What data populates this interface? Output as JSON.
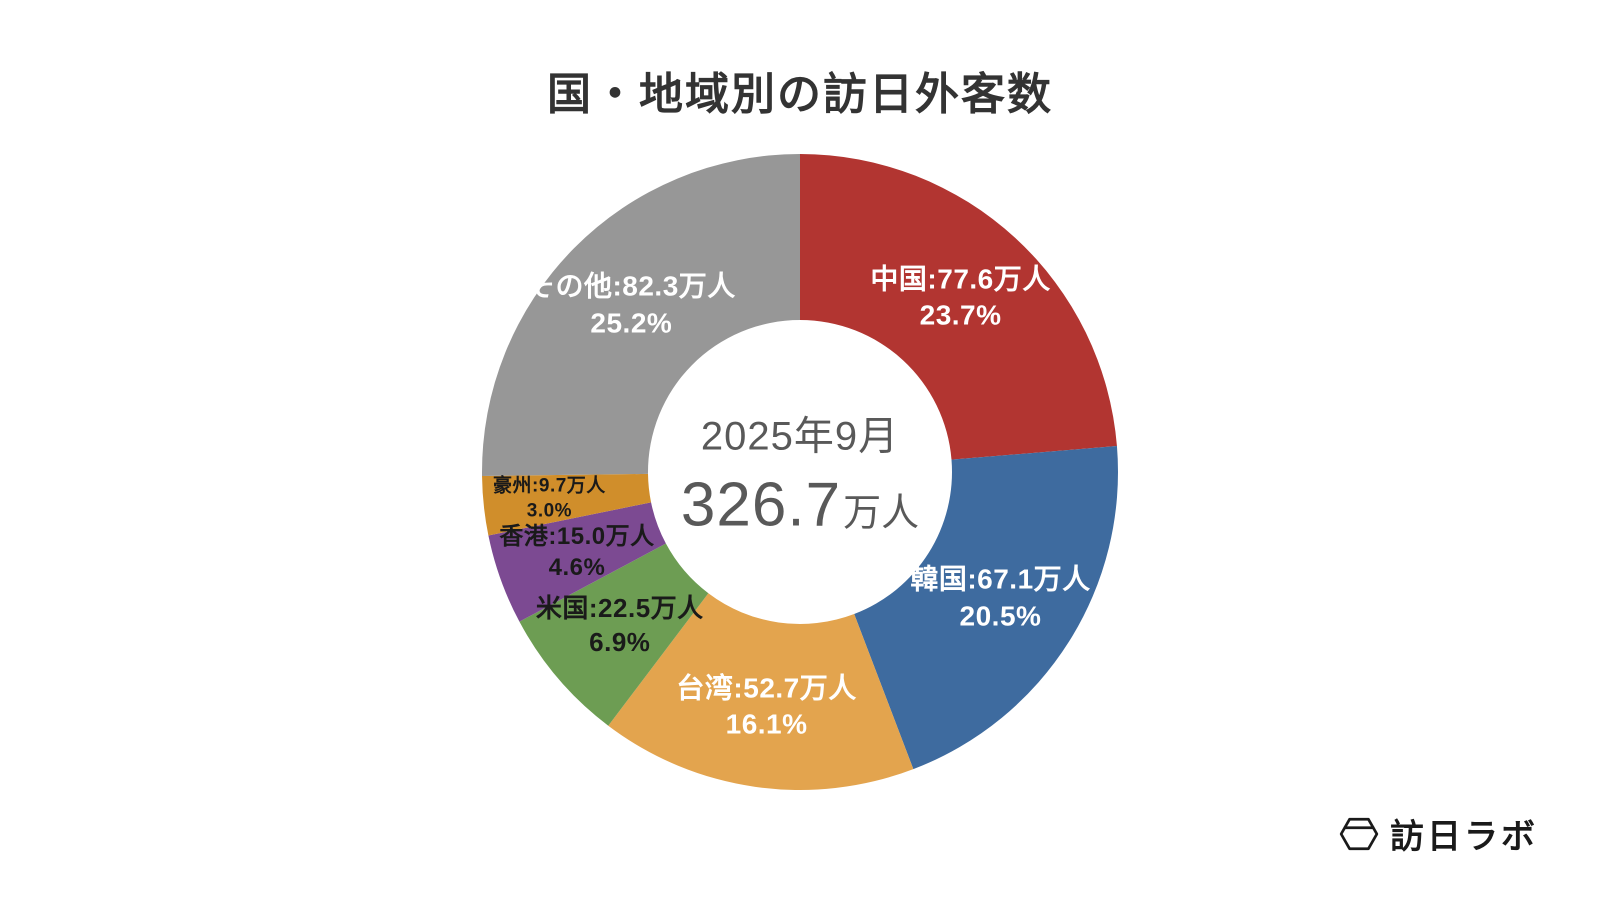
{
  "chart_data": {
    "type": "pie",
    "variant": "donut",
    "title": "国・地域別の訪日外客数",
    "unit": "万人",
    "center": {
      "period": "2025年9月",
      "total_value": "326.7",
      "total_unit": "万人"
    },
    "legend_position": "none",
    "start_angle_deg": 0,
    "direction": "clockwise",
    "slices": [
      {
        "name": "中国",
        "value": "77.6",
        "pct": "23.7",
        "color": "#b23531",
        "label_color": "#ffffff",
        "label_size": 28
      },
      {
        "name": "韓国",
        "value": "67.1",
        "pct": "20.5",
        "color": "#3e6b9f",
        "label_color": "#ffffff",
        "label_size": 28
      },
      {
        "name": "台湾",
        "value": "52.7",
        "pct": "16.1",
        "color": "#e3a44e",
        "label_color": "#ffffff",
        "label_size": 28
      },
      {
        "name": "米国",
        "value": "22.5",
        "pct": "6.9",
        "color": "#6d9d53",
        "label_color": "#1a1a1a",
        "label_size": 26
      },
      {
        "name": "香港",
        "value": "15.0",
        "pct": "4.6",
        "color": "#7c4a92",
        "label_color": "#1a1a1a",
        "label_size": 24
      },
      {
        "name": "豪州",
        "value": "9.7",
        "pct": "3.0",
        "color": "#d08e2b",
        "label_color": "#1a1a1a",
        "label_size": 19,
        "label_r": 252
      },
      {
        "name": "その他",
        "value": "82.3",
        "pct": "25.2",
        "color": "#979797",
        "label_color": "#ffffff",
        "label_size": 28
      }
    ],
    "logo": {
      "text": "訪日ラボ"
    }
  }
}
